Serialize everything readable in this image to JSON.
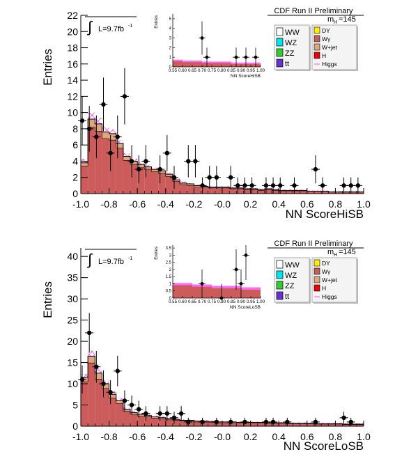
{
  "chart_data": [
    {
      "type": "bar",
      "title": "CDF Run II Preliminary",
      "xlabel": "NN ScoreHiSB",
      "ylabel": "Entries",
      "xlim": [
        -1.0,
        1.0
      ],
      "ylim": [
        0,
        22
      ],
      "x_ticks": [
        "-1.0",
        "-0.8",
        "-0.6",
        "-0.4",
        "-0.2",
        "-0.0",
        "0.2",
        "0.4",
        "0.6",
        "0.8",
        "1.0"
      ],
      "y_ticks": [
        "0",
        "2",
        "4",
        "6",
        "8",
        "10",
        "12",
        "14",
        "16",
        "18",
        "20",
        "22"
      ],
      "luminosity": "L=9.7fb",
      "luminosity_sup": "-1",
      "mass_label": "m",
      "mass_sub": "H",
      "mass_value": "=145",
      "bin_width": 0.05,
      "bin_edges_start": -1.0,
      "background_total": [
        3.8,
        9.2,
        8.6,
        7.6,
        7.4,
        6.2,
        4.6,
        4.0,
        3.6,
        3.3,
        3.0,
        2.8,
        2.4,
        1.7,
        1.3,
        1.2,
        1.0,
        0.9,
        0.8,
        0.8,
        0.8,
        0.7,
        0.7,
        0.6,
        0.6,
        0.5,
        0.6,
        0.5,
        0.4,
        0.4,
        0.4,
        0.4,
        0.3,
        0.3,
        0.3,
        0.2,
        0.2,
        0.2,
        0.2,
        0.2
      ],
      "wjet_layer": [
        0.4,
        1.0,
        0.9,
        0.8,
        0.8,
        0.6,
        0.5,
        0.4,
        0.4,
        0.3,
        0.3,
        0.3,
        0.3,
        0.2,
        0.2,
        0.2,
        0.2,
        0.1,
        0.1,
        0.1,
        0.1,
        0.1,
        0.1,
        0.1,
        0.1,
        0.1,
        0.1,
        0.1,
        0.1,
        0.1,
        0.1,
        0.1,
        0.0,
        0.0,
        0.0,
        0.0,
        0.0,
        0.0,
        0.0,
        0.0
      ],
      "signal_hatch_top": [
        4.3,
        10.0,
        9.3,
        8.2,
        7.9,
        6.6,
        5.0,
        4.3,
        3.9,
        3.5,
        3.2,
        3.0,
        2.6,
        1.9,
        1.5,
        1.3,
        1.1,
        1.0,
        0.9,
        0.9,
        0.9,
        0.8,
        0.8,
        0.7,
        0.7,
        0.6,
        0.7,
        0.6,
        0.5,
        0.5,
        0.5,
        0.5,
        0.4,
        0.4,
        0.4,
        0.3,
        0.3,
        0.3,
        0.3,
        0.3
      ],
      "data_points": [
        {
          "x": -0.99,
          "y": 9
        },
        {
          "x": -0.94,
          "y": 8
        },
        {
          "x": -0.89,
          "y": 7
        },
        {
          "x": -0.84,
          "y": 11
        },
        {
          "x": -0.79,
          "y": 5
        },
        {
          "x": -0.74,
          "y": 7
        },
        {
          "x": -0.69,
          "y": 12
        },
        {
          "x": -0.64,
          "y": 4
        },
        {
          "x": -0.59,
          "y": 3
        },
        {
          "x": -0.54,
          "y": 4
        },
        {
          "x": -0.44,
          "y": 3
        },
        {
          "x": -0.39,
          "y": 5
        },
        {
          "x": -0.34,
          "y": 2
        },
        {
          "x": -0.24,
          "y": 4
        },
        {
          "x": -0.19,
          "y": 4
        },
        {
          "x": -0.14,
          "y": 1
        },
        {
          "x": -0.09,
          "y": 2
        },
        {
          "x": -0.04,
          "y": 2
        },
        {
          "x": 0.06,
          "y": 2
        },
        {
          "x": 0.11,
          "y": 1
        },
        {
          "x": 0.16,
          "y": 1
        },
        {
          "x": 0.21,
          "y": 1
        },
        {
          "x": 0.31,
          "y": 1
        },
        {
          "x": 0.36,
          "y": 1
        },
        {
          "x": 0.41,
          "y": 1
        },
        {
          "x": 0.51,
          "y": 1
        },
        {
          "x": 0.66,
          "y": 3
        },
        {
          "x": 0.71,
          "y": 1
        },
        {
          "x": 0.86,
          "y": 1
        },
        {
          "x": 0.91,
          "y": 1
        },
        {
          "x": 0.96,
          "y": 1
        }
      ],
      "legend": [
        {
          "label": "WW",
          "color": "#ffffff"
        },
        {
          "label": "WZ",
          "color": "#00e5ee"
        },
        {
          "label": "ZZ",
          "color": "#33cc33"
        },
        {
          "label": "tt",
          "color": "#6633cc"
        },
        {
          "label": "DY",
          "color": "#ffee00"
        },
        {
          "label": "Wγ",
          "color": "#c06060"
        },
        {
          "label": "W+jet",
          "color": "#dca77a"
        },
        {
          "label": "H",
          "color": "#ee0000"
        },
        {
          "label": "Higgs",
          "color": "#ff66ff"
        }
      ],
      "inset": {
        "xlabel": "NN ScoreHiSB",
        "ylabel": "Entries",
        "xlim": [
          0.55,
          1.0
        ],
        "ylim": [
          0,
          5.5
        ],
        "x_ticks": [
          "0.55",
          "0.60",
          "0.65",
          "0.70",
          "0.75",
          "0.80",
          "0.85",
          "0.90",
          "0.95",
          "1.00"
        ],
        "y_ticks": [
          "0",
          "1",
          "2",
          "3",
          "4",
          "5"
        ],
        "background_total": [
          0.6,
          0.5,
          0.5,
          0.4,
          0.4,
          0.4,
          0.3,
          0.3,
          0.3
        ],
        "data_points": [
          {
            "x": 0.7,
            "y": 3
          },
          {
            "x": 0.725,
            "y": 1
          },
          {
            "x": 0.875,
            "y": 1
          },
          {
            "x": 0.925,
            "y": 1
          },
          {
            "x": 0.975,
            "y": 1
          }
        ]
      }
    },
    {
      "type": "bar",
      "title": "CDF Run II Preliminary",
      "xlabel": "NN ScoreLoSB",
      "ylabel": "Entries",
      "xlim": [
        -1.0,
        1.0
      ],
      "ylim": [
        0,
        42
      ],
      "x_ticks": [
        "-1.0",
        "-0.8",
        "-0.6",
        "-0.4",
        "-0.2",
        "-0.0",
        "0.2",
        "0.4",
        "0.6",
        "0.8",
        "1.0"
      ],
      "y_ticks": [
        "0",
        "5",
        "10",
        "15",
        "20",
        "25",
        "30",
        "35",
        "40"
      ],
      "luminosity": "L=9.7fb",
      "luminosity_sup": "-1",
      "mass_label": "m",
      "mass_sub": "H",
      "mass_value": "=145",
      "bin_width": 0.05,
      "bin_edges_start": -1.0,
      "background_total": [
        11.5,
        16.5,
        12.5,
        10.0,
        7.5,
        6.0,
        4.0,
        3.2,
        2.8,
        2.5,
        2.2,
        2.0,
        1.8,
        1.6,
        1.4,
        1.4,
        1.2,
        1.2,
        1.1,
        1.0,
        1.0,
        1.0,
        0.9,
        0.9,
        0.9,
        0.9,
        0.8,
        0.8,
        0.8,
        0.7,
        0.7,
        0.7,
        0.7,
        0.6,
        0.6,
        0.6,
        0.6,
        0.5,
        0.5,
        0.5
      ],
      "wjet_layer": [
        1.0,
        1.6,
        1.4,
        1.1,
        0.9,
        0.7,
        0.5,
        0.4,
        0.4,
        0.3,
        0.3,
        0.3,
        0.3,
        0.2,
        0.2,
        0.2,
        0.2,
        0.2,
        0.2,
        0.2,
        0.2,
        0.2,
        0.1,
        0.1,
        0.1,
        0.1,
        0.1,
        0.1,
        0.1,
        0.1,
        0.1,
        0.1,
        0.1,
        0.1,
        0.1,
        0.1,
        0.1,
        0.1,
        0.1,
        0.1
      ],
      "signal_hatch_top": [
        12.3,
        17.8,
        13.6,
        10.9,
        8.2,
        6.6,
        4.5,
        3.6,
        3.1,
        2.8,
        2.5,
        2.3,
        2.0,
        1.8,
        1.6,
        1.6,
        1.4,
        1.4,
        1.3,
        1.2,
        1.2,
        1.2,
        1.1,
        1.1,
        1.1,
        1.1,
        1.0,
        1.0,
        1.0,
        0.9,
        0.9,
        0.9,
        0.9,
        0.8,
        0.8,
        0.8,
        0.8,
        0.7,
        0.7,
        0.7
      ],
      "data_points": [
        {
          "x": -0.99,
          "y": 11
        },
        {
          "x": -0.94,
          "y": 22
        },
        {
          "x": -0.89,
          "y": 14
        },
        {
          "x": -0.84,
          "y": 10
        },
        {
          "x": -0.79,
          "y": 8
        },
        {
          "x": -0.74,
          "y": 13
        },
        {
          "x": -0.69,
          "y": 6
        },
        {
          "x": -0.64,
          "y": 5
        },
        {
          "x": -0.59,
          "y": 4
        },
        {
          "x": -0.54,
          "y": 3
        },
        {
          "x": -0.44,
          "y": 3
        },
        {
          "x": -0.39,
          "y": 3
        },
        {
          "x": -0.34,
          "y": 2
        },
        {
          "x": -0.29,
          "y": 3
        },
        {
          "x": -0.24,
          "y": 1
        },
        {
          "x": -0.14,
          "y": 1
        },
        {
          "x": -0.04,
          "y": 1
        },
        {
          "x": 0.06,
          "y": 1
        },
        {
          "x": 0.16,
          "y": 1
        },
        {
          "x": 0.31,
          "y": 1
        },
        {
          "x": 0.36,
          "y": 1
        },
        {
          "x": 0.46,
          "y": 1
        },
        {
          "x": 0.66,
          "y": 1
        },
        {
          "x": 0.86,
          "y": 2
        },
        {
          "x": 0.91,
          "y": 1
        }
      ],
      "legend": [
        {
          "label": "WW",
          "color": "#ffffff"
        },
        {
          "label": "WZ",
          "color": "#00e5ee"
        },
        {
          "label": "ZZ",
          "color": "#33cc33"
        },
        {
          "label": "tt",
          "color": "#6633cc"
        },
        {
          "label": "DY",
          "color": "#ffee00"
        },
        {
          "label": "Wγ",
          "color": "#c06060"
        },
        {
          "label": "W+jet",
          "color": "#dca77a"
        },
        {
          "label": "H",
          "color": "#ee0000"
        },
        {
          "label": "Higgs",
          "color": "#ff66ff"
        }
      ],
      "inset": {
        "xlabel": "NN ScoreLoSB",
        "ylabel": "Entries",
        "xlim": [
          0.55,
          1.0
        ],
        "ylim": [
          0,
          3.7
        ],
        "x_ticks": [
          "0.55",
          "0.60",
          "0.65",
          "0.70",
          "0.75",
          "0.80",
          "0.85",
          "0.90",
          "0.95",
          "1.00"
        ],
        "y_ticks": [
          "0",
          "0.5",
          "1",
          "1.5",
          "2",
          "2.5",
          "3",
          "3.5"
        ],
        "background_total": [
          0.9,
          0.9,
          0.8,
          0.8,
          0.7,
          0.7,
          0.7,
          0.6,
          0.6
        ],
        "data_points": [
          {
            "x": 0.7,
            "y": 1
          },
          {
            "x": 0.8,
            "y": 0
          },
          {
            "x": 0.875,
            "y": 2
          },
          {
            "x": 0.9,
            "y": 1
          },
          {
            "x": 0.925,
            "y": 3
          }
        ]
      }
    }
  ]
}
